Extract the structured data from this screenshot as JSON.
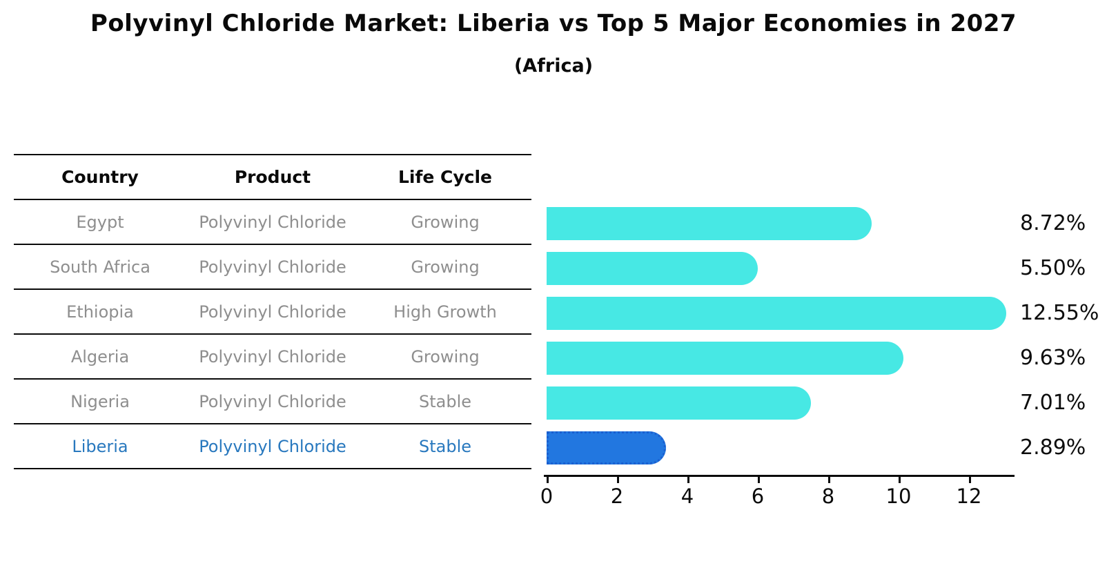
{
  "title": "Polyvinyl Chloride Market: Liberia vs Top 5 Major Economies in 2027",
  "subtitle": "(Africa)",
  "table": {
    "headers": [
      "Country",
      "Product",
      "Life Cycle"
    ],
    "rows": [
      {
        "country": "Egypt",
        "product": "Polyvinyl Chloride",
        "life_cycle": "Growing"
      },
      {
        "country": "South Africa",
        "product": "Polyvinyl Chloride",
        "life_cycle": "Growing"
      },
      {
        "country": "Ethiopia",
        "product": "Polyvinyl Chloride",
        "life_cycle": "High Growth"
      },
      {
        "country": "Algeria",
        "product": "Polyvinyl Chloride",
        "life_cycle": "Growing"
      },
      {
        "country": "Nigeria",
        "product": "Polyvinyl Chloride",
        "life_cycle": "Stable"
      },
      {
        "country": "Liberia",
        "product": "Polyvinyl Chloride",
        "life_cycle": "Stable"
      }
    ],
    "highlight_row": "Liberia"
  },
  "chart_data": {
    "type": "bar",
    "orientation": "horizontal",
    "categories": [
      "Egypt",
      "South Africa",
      "Ethiopia",
      "Algeria",
      "Nigeria",
      "Liberia"
    ],
    "values": [
      8.72,
      5.5,
      12.55,
      9.63,
      7.01,
      2.89
    ],
    "value_labels": [
      "8.72%",
      "5.50%",
      "12.55%",
      "9.63%",
      "7.01%",
      "2.89%"
    ],
    "xticks": [
      0,
      2,
      4,
      6,
      8,
      10,
      12
    ],
    "xlim": [
      0,
      13.3
    ],
    "grid": false,
    "legend": false,
    "bar_color": "#47e8e4",
    "highlight": {
      "category": "Liberia",
      "index": 5,
      "color": "#2277e0",
      "border_color": "#1a5fd0",
      "border_style": "dotted",
      "text_color": "#2878be"
    }
  }
}
